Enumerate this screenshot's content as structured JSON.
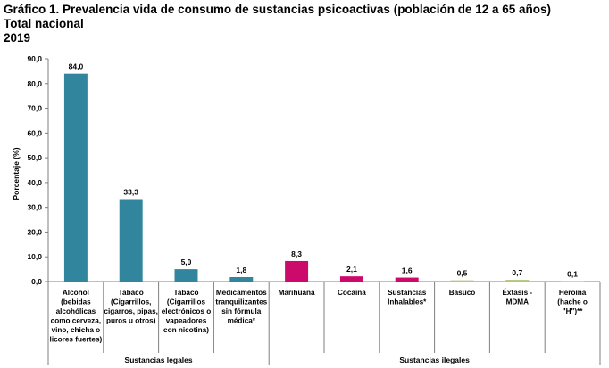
{
  "title": "Gráfico 1. Prevalencia vida de consumo de sustancias psicoactivas (población de 12 a 65 años)",
  "subtitle": "Total nacional",
  "year": "2019",
  "chart_data": {
    "type": "bar",
    "title": "Gráfico 1. Prevalencia vida de consumo de sustancias psicoactivas (población de 12 a 65 años)",
    "ylabel": "Porcentaje (%)",
    "ylim": [
      0,
      90
    ],
    "yticks": [
      "0,0",
      "10,0",
      "20,0",
      "30,0",
      "40,0",
      "50,0",
      "60,0",
      "70,0",
      "80,0",
      "90,0"
    ],
    "grid": false,
    "categories": [
      [
        "Alcohol",
        "(bebidas",
        "alcohólicas",
        "como cerveza,",
        "vino, chicha o",
        "licores fuertes)"
      ],
      [
        "Tabaco",
        "(Cigarrillos,",
        "cigarros, pipas,",
        "puros u otros)"
      ],
      [
        "Tabaco",
        "(Cigarrillos",
        "electrónicos o",
        "vapeadores",
        "con nicotina)"
      ],
      [
        "Medicamentos",
        "tranquilizantes",
        "sin fórmula",
        "médica*"
      ],
      [
        "Marihuana"
      ],
      [
        "Cocaína"
      ],
      [
        "Sustancias",
        "Inhalables*"
      ],
      [
        "Basuco"
      ],
      [
        "Éxtasis -",
        "MDMA"
      ],
      [
        "Heroína",
        "(hache o",
        "\"H\")**"
      ]
    ],
    "values": [
      84.0,
      33.3,
      5.0,
      1.8,
      8.3,
      2.1,
      1.6,
      0.5,
      0.7,
      0.1
    ],
    "value_labels": [
      "84,0",
      "33,3",
      "5,0",
      "1,8",
      "8,3",
      "2,1",
      "1,6",
      "0,5",
      "0,7",
      "0,1"
    ],
    "groups": [
      {
        "name": "Sustancias legales",
        "count": 4,
        "color": "#31859c"
      },
      {
        "name": "Sustancias ilegales",
        "count": 3,
        "color": "#cc0a6b"
      },
      {
        "name": "Sustancias ilegales",
        "count": 3,
        "color": "#b0c97b"
      }
    ],
    "group_labels": [
      "Sustancias legales",
      "Sustancias ilegales"
    ]
  }
}
